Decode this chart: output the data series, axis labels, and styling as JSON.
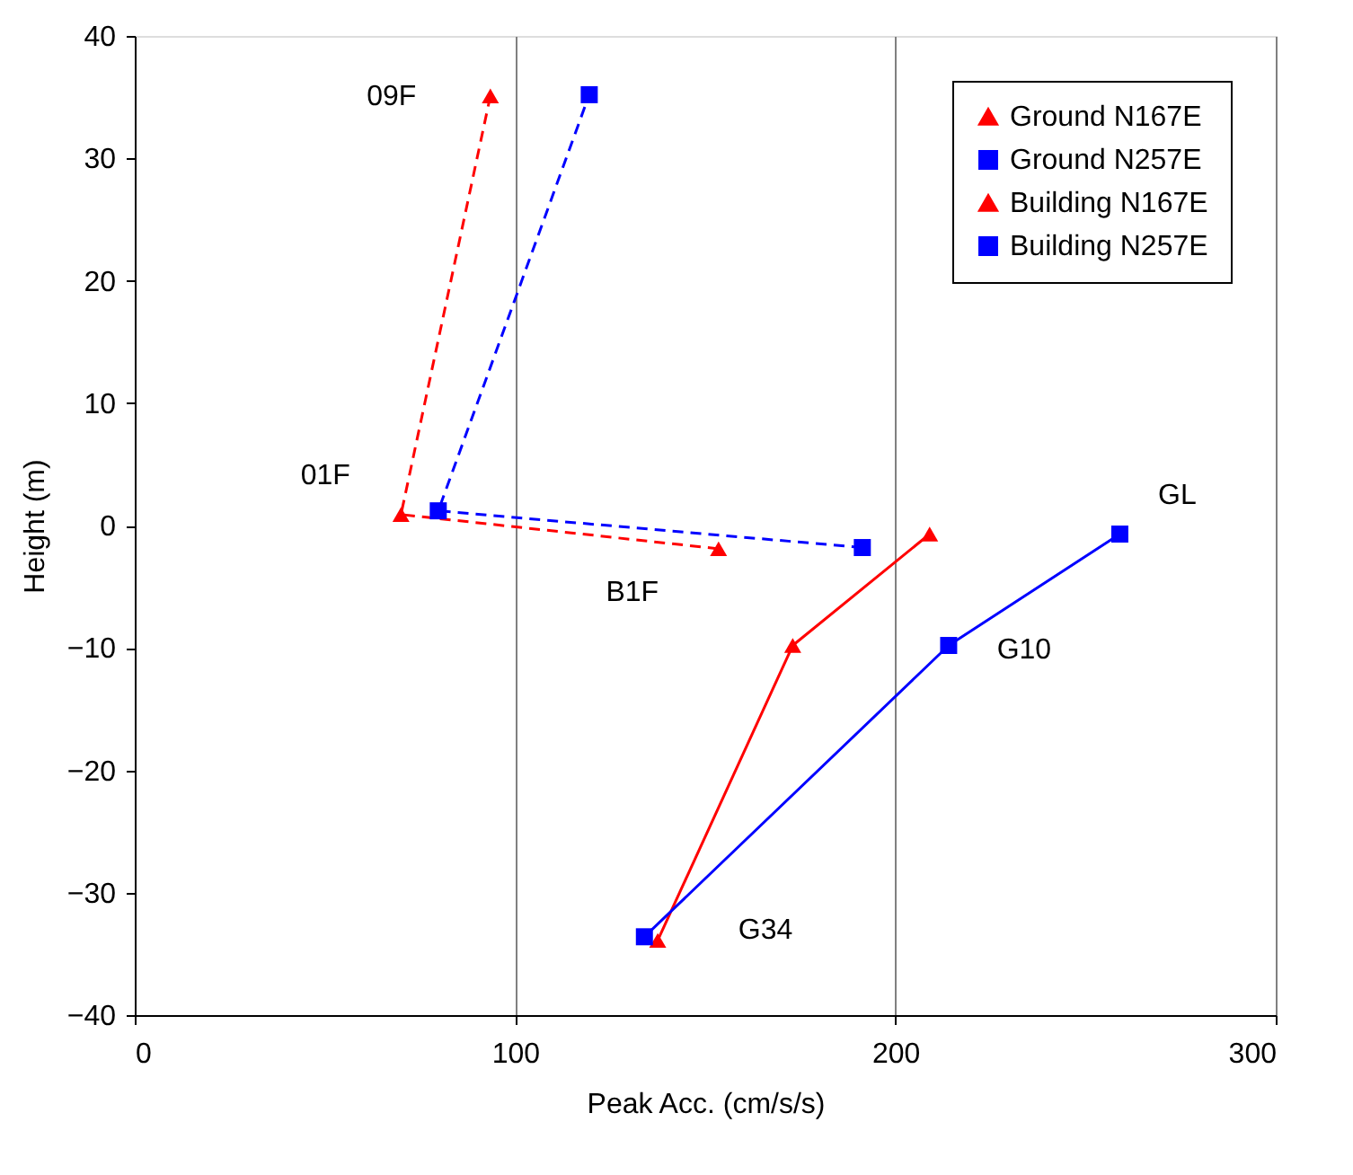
{
  "chart_data": {
    "type": "line",
    "xlabel": "Peak Acc. (cm/s/s)",
    "ylabel": "Height (m)",
    "xlim": [
      0,
      300
    ],
    "xticks": [
      0,
      100,
      200,
      300
    ],
    "ylim": [
      -40,
      40
    ],
    "yticks": [
      -40,
      -30,
      -20,
      -10,
      0,
      10,
      20,
      30,
      40
    ],
    "grid": "x",
    "legend": "top right",
    "series": [
      {
        "name": "Ground N167E",
        "color": "#ff0000",
        "marker": "triangle",
        "line_style": "solid",
        "x": [
          209,
          173,
          137.5
        ],
        "values": [
          -0.7,
          -9.8,
          -33.9
        ]
      },
      {
        "name": "Ground N257E",
        "color": "#0000ff",
        "marker": "square",
        "line_style": "solid",
        "x": [
          259,
          214,
          134
        ],
        "values": [
          -0.7,
          -9.8,
          -33.6
        ]
      },
      {
        "name": "Building N167E",
        "color": "#ff0000",
        "marker": "triangle",
        "line_style": "dashed",
        "x": [
          153.5,
          70,
          93.5
        ],
        "values": [
          -1.9,
          0.9,
          35.1
        ]
      },
      {
        "name": "Building N257E",
        "color": "#0000ff",
        "marker": "square",
        "line_style": "dashed",
        "x": [
          191.3,
          79.8,
          119.5
        ],
        "values": [
          -1.8,
          1.2,
          35.2
        ]
      }
    ],
    "annotations": [
      {
        "text": "09F",
        "x": 93.5,
        "y": 35.1
      },
      {
        "text": "01F",
        "x": 70,
        "y": 0.9
      },
      {
        "text": "B1F",
        "x": 153.5,
        "y": -1.9
      },
      {
        "text": "GL",
        "x": 259,
        "y": -0.7
      },
      {
        "text": "G10",
        "x": 214,
        "y": -9.8
      },
      {
        "text": "G34",
        "x": 137.5,
        "y": -33.9
      }
    ]
  }
}
